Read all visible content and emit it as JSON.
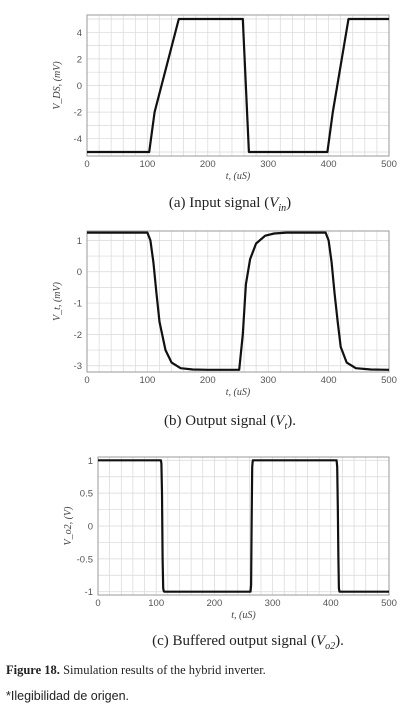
{
  "figure": {
    "label": "Figure 18.",
    "text": " Simulation results of the hybrid inverter.",
    "note": "*Ilegibilidad de origen."
  },
  "chart_data": [
    {
      "type": "line",
      "caption_before": "(a) Input signal (",
      "caption_var": "V",
      "caption_sub": "in",
      "caption_after": ")",
      "xlabel": "t, (uS)",
      "ylabel": "V_DS, (mV)",
      "xlim": [
        0,
        500
      ],
      "ylim": [
        -5.3,
        5.3
      ],
      "xticks": [
        0,
        100,
        200,
        300,
        400,
        500
      ],
      "yticks": [
        4,
        2,
        0,
        -2,
        -4
      ],
      "ytick_labels": [
        "4",
        "2",
        "0",
        "-2",
        "-4"
      ],
      "grid": true,
      "series": [
        {
          "x": [
            0,
            103,
            112,
            152,
            258,
            268,
            398,
            407,
            433,
            500
          ],
          "y": [
            -5,
            -5,
            -2,
            5,
            5,
            -5,
            -5,
            -2,
            5,
            5
          ]
        }
      ]
    },
    {
      "type": "line",
      "caption_before": "(b) Output signal (",
      "caption_var": "V",
      "caption_sub": "t",
      "caption_after": ").",
      "xlabel": "t, (uS)",
      "ylabel": "V_t, (mV)",
      "xlim": [
        0,
        500
      ],
      "ylim": [
        -3.2,
        1.3
      ],
      "xticks": [
        0,
        100,
        200,
        300,
        400,
        500
      ],
      "yticks": [
        1,
        0,
        -1,
        -2,
        -3
      ],
      "ytick_labels": [
        "1",
        "0",
        "-1",
        "-2",
        "-3"
      ],
      "grid": true,
      "series": [
        {
          "x": [
            0,
            100,
            105,
            110,
            115,
            120,
            130,
            140,
            155,
            175,
            200,
            240,
            252,
            258,
            263,
            270,
            280,
            295,
            310,
            330,
            350,
            395,
            400,
            405,
            410,
            415,
            420,
            430,
            445,
            470,
            500
          ],
          "y": [
            1.25,
            1.25,
            1.0,
            0.3,
            -0.7,
            -1.6,
            -2.5,
            -2.9,
            -3.08,
            -3.12,
            -3.13,
            -3.13,
            -3.13,
            -2.0,
            -0.4,
            0.4,
            0.9,
            1.15,
            1.22,
            1.25,
            1.25,
            1.25,
            1.0,
            0.3,
            -0.7,
            -1.6,
            -2.4,
            -2.9,
            -3.08,
            -3.12,
            -3.13
          ]
        }
      ]
    },
    {
      "type": "line",
      "caption_before": "(c) Buffered output signal (",
      "caption_var": "V",
      "caption_sub": "o2",
      "caption_after": ").",
      "xlabel": "t, (uS)",
      "ylabel": "V_o2, (V)",
      "xlim": [
        0,
        500
      ],
      "ylim": [
        -1.05,
        1.05
      ],
      "xticks": [
        0,
        100,
        200,
        300,
        400,
        500
      ],
      "yticks": [
        1,
        0.5,
        0,
        -0.5,
        -1
      ],
      "ytick_labels": [
        "1",
        "0.5",
        "0",
        "-0.5",
        "-1"
      ],
      "grid": true,
      "series": [
        {
          "x": [
            0,
            108,
            109,
            110,
            111,
            112,
            113,
            114,
            262,
            263,
            264,
            265,
            266,
            410,
            411,
            412,
            413,
            414,
            415,
            500
          ],
          "y": [
            1,
            1,
            0.95,
            0.5,
            -0.5,
            -0.95,
            -0.99,
            -1,
            -1,
            -0.9,
            0,
            0.9,
            1,
            1,
            0.9,
            0.3,
            -0.5,
            -0.95,
            -1,
            -1
          ]
        }
      ]
    }
  ]
}
